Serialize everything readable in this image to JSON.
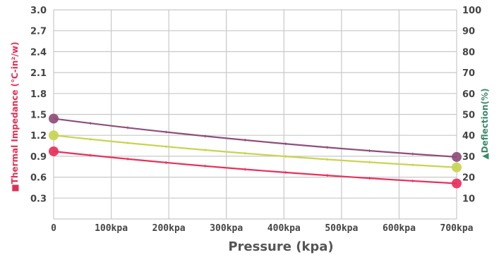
{
  "chart_data": {
    "type": "line",
    "x_label": "Pressure (kpa)",
    "x_ticks": [
      "0",
      "100kpa",
      "200kpa",
      "300kpa",
      "400kpa",
      "500kpa",
      "600kpa",
      "700kpa"
    ],
    "x": [
      0,
      700
    ],
    "y_left_label": "■Thermal Impedance (℃-in²/w)",
    "y_left_ticks": [
      "0.3",
      "0.6",
      "0.9",
      "1.2",
      "1.5",
      "1.8",
      "2.1",
      "2.4",
      "2.7",
      "3.0"
    ],
    "y_left_lim": [
      0,
      3.0
    ],
    "y_right_label": "▲Deflection(%)",
    "y_right_ticks": [
      "10",
      "20",
      "30",
      "40",
      "50",
      "60",
      "70",
      "80",
      "90",
      "100"
    ],
    "y_right_lim": [
      0,
      100
    ],
    "grid": true,
    "series": [
      {
        "axis": "left",
        "color": "#8e4d7a",
        "values": [
          1.44,
          0.89
        ]
      },
      {
        "axis": "left",
        "color": "#e8305a",
        "values": [
          0.97,
          0.51
        ]
      },
      {
        "axis": "left",
        "color": "#c8d44e",
        "values": [
          1.2,
          0.74
        ]
      }
    ],
    "colors": {
      "left_axis_title": "#e03055",
      "right_axis_title": "#3a8a6a",
      "grid": "#c8c8c8",
      "axis_text": "#444444"
    }
  }
}
